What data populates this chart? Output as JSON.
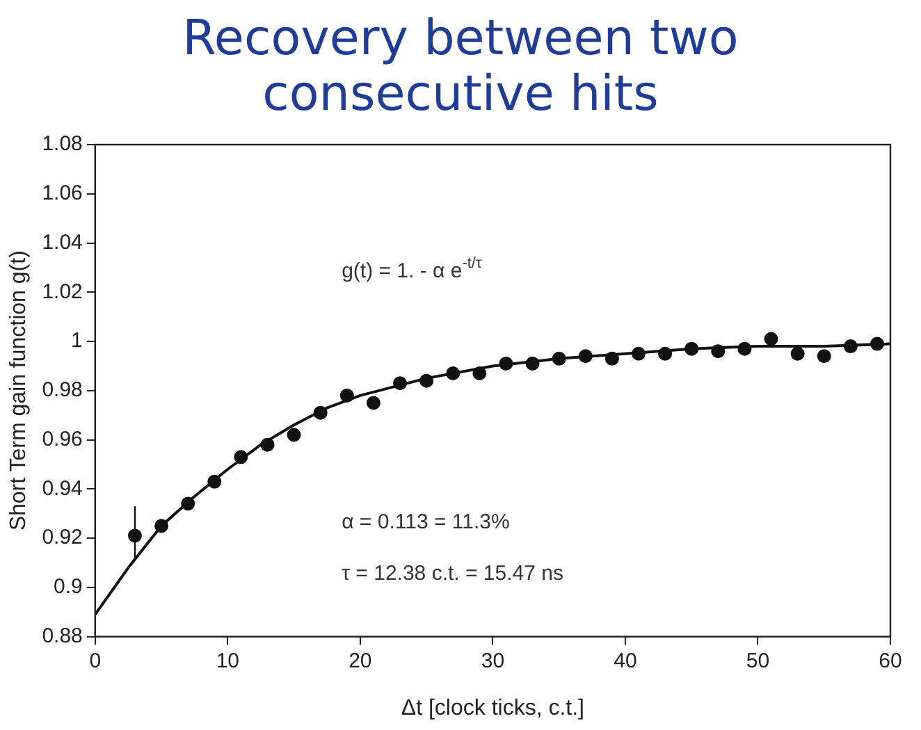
{
  "chart_data": {
    "type": "scatter",
    "title": "Recovery between two consecutive hits",
    "xlabel": "Δt [clock ticks, c.t.]",
    "ylabel": "Short Term gain function g(t)",
    "xlim": [
      0,
      60
    ],
    "xticks": [
      0,
      10,
      20,
      30,
      40,
      50,
      60
    ],
    "ylim": [
      0.88,
      1.08
    ],
    "yticks": [
      0.88,
      0.9,
      0.92,
      0.94,
      0.96,
      0.98,
      1,
      1.02,
      1.04,
      1.06,
      1.08
    ],
    "grid": false,
    "legend": false,
    "marker": "circle",
    "annotations": [
      "g(t) = 1. - α e$^{-t/τ}$",
      "α = 0.113 = 11.3%",
      "τ = 12.38 c.t. = 15.47 ns"
    ],
    "series": [
      {
        "color": "#111111",
        "x": [
          3,
          5,
          7,
          9,
          11,
          13,
          15,
          17,
          19,
          21,
          23,
          25,
          27,
          29,
          31,
          33,
          35,
          37,
          39,
          41,
          43,
          45,
          47,
          49,
          51,
          53,
          55,
          57,
          59
        ],
        "values": [
          0.921,
          0.925,
          0.934,
          0.943,
          0.953,
          0.958,
          0.962,
          0.971,
          0.978,
          0.975,
          0.983,
          0.984,
          0.987,
          0.987,
          0.991,
          0.991,
          0.993,
          0.994,
          0.993,
          0.995,
          0.995,
          0.997,
          0.996,
          0.997,
          1.001,
          0.995,
          0.994,
          0.998,
          0.999
        ],
        "errors": [
          [
            0.912,
            0.933
          ],
          null,
          null,
          null,
          null,
          null,
          null,
          null,
          null,
          null,
          null,
          null,
          null,
          null,
          null,
          null,
          null,
          null,
          null,
          null,
          null,
          null,
          null,
          null,
          null,
          null,
          null,
          null,
          null
        ]
      },
      {
        "type": "line",
        "color": "#111111",
        "line_style": "solid",
        "marker": "none",
        "x": [
          0,
          2.5,
          5,
          7.5,
          10,
          12.5,
          15,
          17.5,
          20,
          25,
          30,
          35,
          40,
          45,
          50,
          55,
          60
        ],
        "values": [
          0.889,
          0.908,
          0.925,
          0.937,
          0.948,
          0.958,
          0.966,
          0.973,
          0.978,
          0.985,
          0.99,
          0.993,
          0.995,
          0.997,
          0.998,
          0.998,
          0.999
        ]
      }
    ]
  }
}
